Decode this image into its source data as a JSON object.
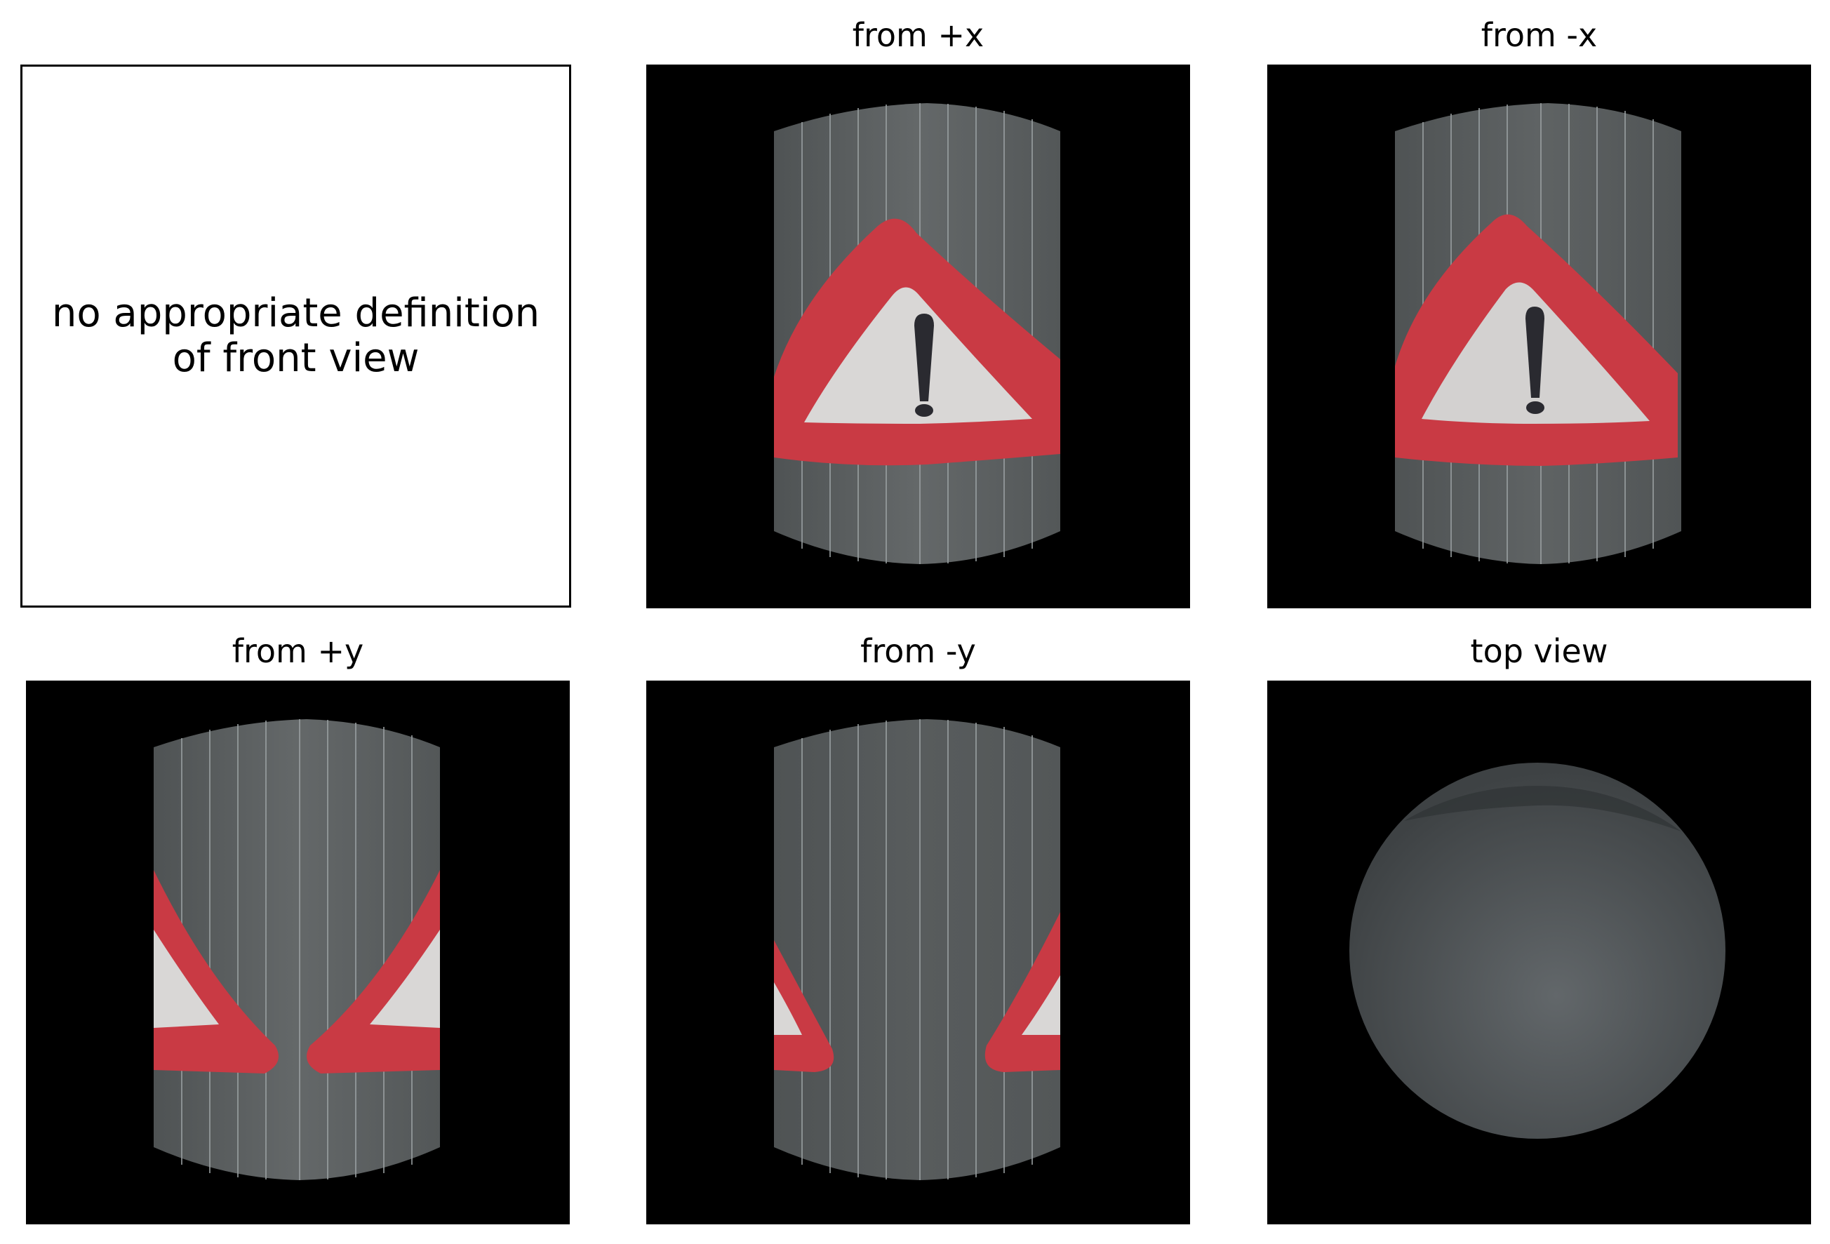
{
  "note_panel": {
    "text": "no appropriate definition\nof front view"
  },
  "views": [
    {
      "key": "plus-x",
      "title": "from +x",
      "sign": "full"
    },
    {
      "key": "minus-x",
      "title": "from -x",
      "sign": "full"
    },
    {
      "key": "plus-y",
      "title": "from +y",
      "sign": "split"
    },
    {
      "key": "minus-y",
      "title": "from -y",
      "sign": "edges"
    },
    {
      "key": "top",
      "title": "top view",
      "sign": "none"
    }
  ],
  "colors": {
    "background": "#000000",
    "cylinder": "#5c6061",
    "sign_red": "#c93a44",
    "sign_white": "#d9d7d6",
    "exclamation": "#2a2a30"
  }
}
